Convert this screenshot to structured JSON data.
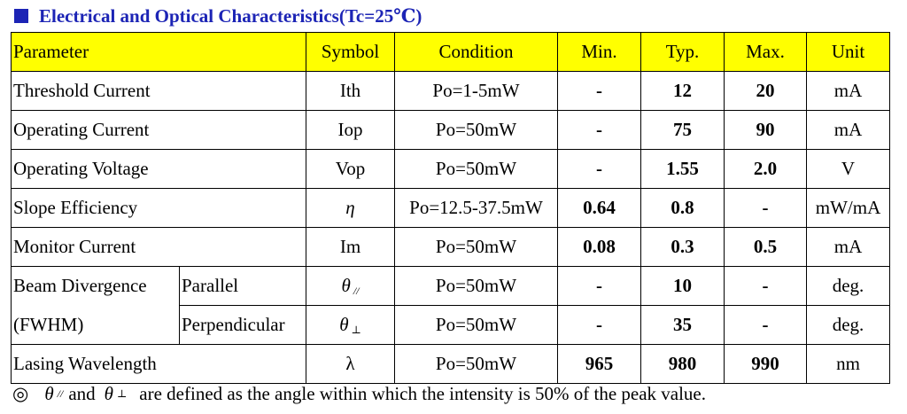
{
  "title": "Electrical and Optical Characteristics(Tc=25℃)",
  "headers": {
    "parameter": "Parameter",
    "symbol": "Symbol",
    "condition": "Condition",
    "min": "Min.",
    "typ": "Typ.",
    "max": "Max.",
    "unit": "Unit"
  },
  "rows": {
    "threshold": {
      "parameter": "Threshold Current",
      "symbol": "Ith",
      "condition": "Po=1-5mW",
      "min": "-",
      "typ": "12",
      "max": "20",
      "unit": "mA"
    },
    "operating_current": {
      "parameter": "Operating Current",
      "symbol": "Iop",
      "condition": "Po=50mW",
      "min": "-",
      "typ": "75",
      "max": "90",
      "unit": "mA"
    },
    "operating_voltage": {
      "parameter": "Operating Voltage",
      "symbol": "Vop",
      "condition": "Po=50mW",
      "min": "-",
      "typ": "1.55",
      "max": "2.0",
      "unit": "V"
    },
    "slope": {
      "parameter": "Slope Efficiency",
      "symbol": "η",
      "condition": "Po=12.5-37.5mW",
      "min": "0.64",
      "typ": "0.8",
      "max": "-",
      "unit": "mW/mA"
    },
    "monitor": {
      "parameter": "Monitor Current",
      "symbol": "Im",
      "condition": "Po=50mW",
      "min": "0.08",
      "typ": "0.3",
      "max": "0.5",
      "unit": "mA"
    },
    "beam_parallel": {
      "parameter": "Beam Divergence",
      "sub": "Parallel",
      "symbol": "θ",
      "symbol_sub": "//",
      "condition": "Po=50mW",
      "min": "-",
      "typ": "10",
      "max": "-",
      "unit": "deg."
    },
    "beam_perp": {
      "parameter": "(FWHM)",
      "sub": "Perpendicular",
      "symbol": "θ",
      "symbol_sub": "⊥",
      "condition": "Po=50mW",
      "min": "-",
      "typ": "35",
      "max": "-",
      "unit": "deg."
    },
    "wavelength": {
      "parameter": "Lasing Wavelength",
      "symbol": "λ",
      "condition": "Po=50mW",
      "min": "965",
      "typ": "980",
      "max": "990",
      "unit": "nm"
    }
  },
  "note": {
    "bullet": "◎",
    "theta": "θ",
    "sub_parallel": "//",
    "and": "and",
    "sub_perp": "⊥",
    "text": "are defined as the angle within which the intensity is 50% of the peak value."
  },
  "colors": {
    "title": "#1c24b5",
    "header_bg": "#ffff00"
  }
}
